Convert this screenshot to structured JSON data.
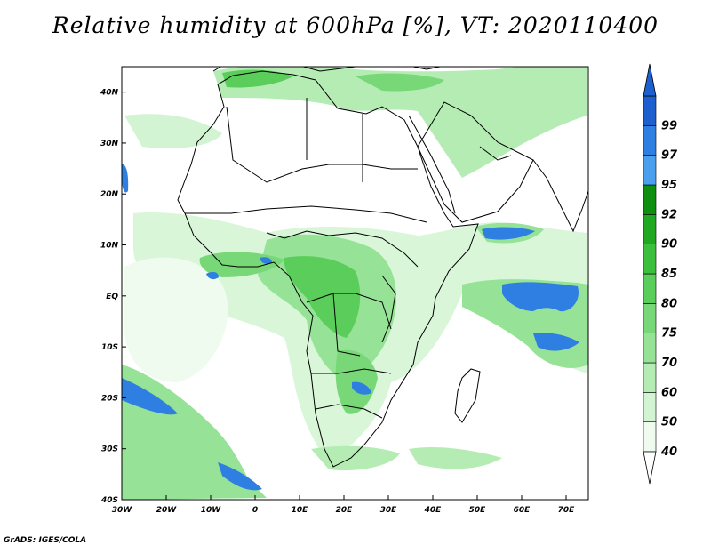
{
  "title": "Relative humidity at 600hPa [%], VT: 2020110400",
  "credit": "GrADS: IGES/COLA",
  "lon_labels": [
    "30W",
    "20W",
    "10W",
    "0",
    "10E",
    "20E",
    "30E",
    "40E",
    "50E",
    "60E",
    "70E"
  ],
  "lon_values": [
    -30,
    -20,
    -10,
    0,
    10,
    20,
    30,
    40,
    50,
    60,
    70
  ],
  "lat_labels": [
    "40N",
    "30N",
    "20N",
    "10N",
    "EQ",
    "10S",
    "20S",
    "30S",
    "40S"
  ],
  "lat_values": [
    40,
    30,
    20,
    10,
    0,
    -10,
    -20,
    -30,
    -40
  ],
  "map_extent": {
    "lon": [
      -30,
      75
    ],
    "lat": [
      -40,
      45
    ]
  },
  "colorbar": {
    "labels": [
      "40",
      "50",
      "60",
      "70",
      "75",
      "80",
      "85",
      "90",
      "92",
      "95",
      "97",
      "99"
    ],
    "colors": [
      "#eefbee",
      "#d2f4d2",
      "#b4ecb4",
      "#96e296",
      "#78d878",
      "#5acd5a",
      "#3cbf3c",
      "#21a821",
      "#0f8f0f",
      "#4aa0ee",
      "#2f7fe2",
      "#1d5fcf"
    ]
  },
  "colors": {
    "coast": "#000000",
    "high_rh": "#2f7fe2",
    "moist": "#5acd5a"
  }
}
